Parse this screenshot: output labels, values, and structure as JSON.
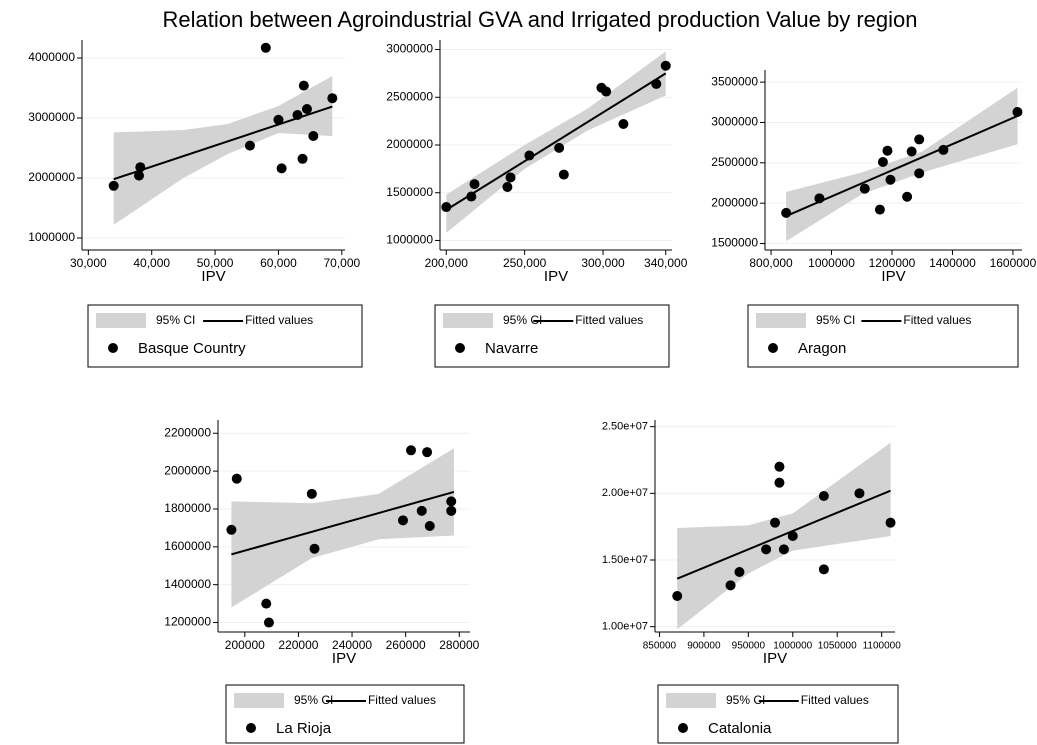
{
  "title": "Relation between Agroindustrial GVA and Irrigated production Value by region",
  "chart_data": [
    {
      "type": "scatter",
      "xlabel": "IPV",
      "xlim": [
        29000,
        70500
      ],
      "ylim": [
        800000,
        4300000
      ],
      "xticks": [
        {
          "value": 30000,
          "label": "30,000"
        },
        {
          "value": 40000,
          "label": "40,000"
        },
        {
          "value": 50000,
          "label": "50,000"
        },
        {
          "value": 60000,
          "label": "60,000"
        },
        {
          "value": 70000,
          "label": "70,000"
        }
      ],
      "yticks": [
        1000000,
        2000000,
        3000000,
        4000000
      ],
      "grid": true,
      "series": [
        {
          "name": "Basque Country",
          "color": "#000000",
          "x": [
            34000,
            38000,
            38200,
            55500,
            58000,
            60000,
            60500,
            63000,
            64000,
            63800,
            64500,
            65500,
            68500
          ],
          "values": [
            1870000,
            2040000,
            2180000,
            2540000,
            4170000,
            2970000,
            2160000,
            3050000,
            3540000,
            2320000,
            3150000,
            2700000,
            3330000
          ]
        }
      ],
      "fit": {
        "name": "Fitted values",
        "color": "#000000",
        "x": [
          34000,
          68500
        ],
        "values": [
          1980000,
          3190000
        ]
      },
      "ci": {
        "name": "95% CI",
        "color": "#d3d3d3",
        "x": [
          34000,
          45000,
          52000,
          60000,
          68500
        ],
        "upper": [
          2760000,
          2800000,
          2900000,
          3200000,
          3700000
        ],
        "lower": [
          1220000,
          2000000,
          2400000,
          2750000,
          2700000
        ]
      }
    },
    {
      "type": "scatter",
      "xlabel": "IPV",
      "xlim": [
        196000,
        344000
      ],
      "ylim": [
        900000,
        3100000
      ],
      "xticks": [
        {
          "value": 200000,
          "label": "200,000"
        },
        {
          "value": 250000,
          "label": "250,000"
        },
        {
          "value": 300000,
          "label": "300,000"
        },
        {
          "value": 340000,
          "label": "340,000"
        }
      ],
      "yticks": [
        1000000,
        1500000,
        2000000,
        2500000,
        3000000
      ],
      "grid": true,
      "series": [
        {
          "name": "Navarre",
          "color": "#000000",
          "x": [
            200000,
            216000,
            218000,
            239000,
            241000,
            253000,
            272000,
            275000,
            299000,
            302000,
            313000,
            334000,
            340000
          ],
          "values": [
            1350000,
            1460000,
            1590000,
            1560000,
            1660000,
            1890000,
            1970000,
            1690000,
            2600000,
            2560000,
            2220000,
            2640000,
            2830000
          ]
        }
      ],
      "fit": {
        "name": "Fitted values",
        "color": "#000000",
        "x": [
          200000,
          340000
        ],
        "values": [
          1320000,
          2750000
        ]
      },
      "ci": {
        "name": "95% CI",
        "color": "#d3d3d3",
        "x": [
          200000,
          250000,
          290000,
          340000
        ],
        "upper": [
          1480000,
          2000000,
          2380000,
          2980000
        ],
        "lower": [
          1080000,
          1750000,
          2150000,
          2520000
        ]
      }
    },
    {
      "type": "scatter",
      "xlabel": "IPV",
      "xlim": [
        780000,
        1630000
      ],
      "ylim": [
        1420000,
        3650000
      ],
      "xticks": [
        {
          "value": 800000,
          "label": "800,000"
        },
        1000000,
        1200000,
        1400000,
        1600000
      ],
      "yticks": [
        1500000,
        2000000,
        2500000,
        3000000,
        3500000
      ],
      "grid": true,
      "series": [
        {
          "name": "Aragon",
          "color": "#000000",
          "x": [
            850000,
            960000,
            1110000,
            1160000,
            1170000,
            1185000,
            1195000,
            1250000,
            1265000,
            1290000,
            1290000,
            1370000,
            1615000
          ],
          "values": [
            1880000,
            2060000,
            2180000,
            1920000,
            2510000,
            2650000,
            2290000,
            2080000,
            2640000,
            2790000,
            2370000,
            2660000,
            3130000
          ]
        }
      ],
      "fit": {
        "name": "Fitted values",
        "color": "#000000",
        "x": [
          850000,
          1615000
        ],
        "values": [
          1840000,
          3080000
        ]
      },
      "ci": {
        "name": "95% CI",
        "color": "#d3d3d3",
        "x": [
          850000,
          1100000,
          1300000,
          1615000
        ],
        "upper": [
          2140000,
          2380000,
          2640000,
          3430000
        ],
        "lower": [
          1530000,
          2110000,
          2380000,
          2730000
        ]
      }
    },
    {
      "type": "scatter",
      "xlabel": "IPV",
      "xlim": [
        190000,
        284000
      ],
      "ylim": [
        1150000,
        2270000
      ],
      "xticks": [
        200000,
        220000,
        240000,
        260000,
        280000
      ],
      "yticks": [
        1200000,
        1400000,
        1600000,
        1800000,
        2000000,
        2200000
      ],
      "grid": true,
      "series": [
        {
          "name": "La Rioja",
          "color": "#000000",
          "x": [
            195000,
            197000,
            208000,
            209000,
            225000,
            226000,
            259000,
            262000,
            266000,
            268000,
            269000,
            277000,
            277000
          ],
          "values": [
            1690000,
            1960000,
            1300000,
            1200000,
            1880000,
            1590000,
            1740000,
            2110000,
            1790000,
            2100000,
            1710000,
            1840000,
            1790000
          ]
        }
      ],
      "fit": {
        "name": "Fitted values",
        "color": "#000000",
        "x": [
          195000,
          278000
        ],
        "values": [
          1560000,
          1890000
        ]
      },
      "ci": {
        "name": "95% CI",
        "color": "#d3d3d3",
        "x": [
          195000,
          225000,
          250000,
          278000
        ],
        "upper": [
          1840000,
          1830000,
          1880000,
          2120000
        ],
        "lower": [
          1280000,
          1540000,
          1640000,
          1660000
        ]
      }
    },
    {
      "type": "scatter",
      "xlabel": "IPV",
      "xlim": [
        845000,
        1115000
      ],
      "ylim": [
        9600000,
        25500000
      ],
      "xticks": [
        850000,
        900000,
        950000,
        1000000,
        1050000,
        1100000
      ],
      "yticks": [
        {
          "value": 10000000,
          "label": "1.00e+07"
        },
        {
          "value": 15000000,
          "label": "1.50e+07"
        },
        {
          "value": 20000000,
          "label": "2.00e+07"
        },
        {
          "value": 25000000,
          "label": "2.50e+07"
        }
      ],
      "grid": true,
      "series": [
        {
          "name": "Catalonia",
          "color": "#000000",
          "x": [
            870000,
            930000,
            940000,
            970000,
            980000,
            985000,
            985000,
            990000,
            1000000,
            1035000,
            1035000,
            1075000,
            1110000
          ],
          "values": [
            12300000,
            13100000,
            14100000,
            15800000,
            17800000,
            22000000,
            20800000,
            15800000,
            16800000,
            14300000,
            19800000,
            20000000,
            17800000
          ]
        }
      ],
      "fit": {
        "name": "Fitted values",
        "color": "#000000",
        "x": [
          870000,
          1110000
        ],
        "values": [
          13600000,
          20200000
        ]
      },
      "ci": {
        "name": "95% CI",
        "color": "#d3d3d3",
        "x": [
          870000,
          950000,
          1000000,
          1110000
        ],
        "upper": [
          17400000,
          17600000,
          18500000,
          23800000
        ],
        "lower": [
          9800000,
          14000000,
          15700000,
          16800000
        ]
      }
    }
  ]
}
